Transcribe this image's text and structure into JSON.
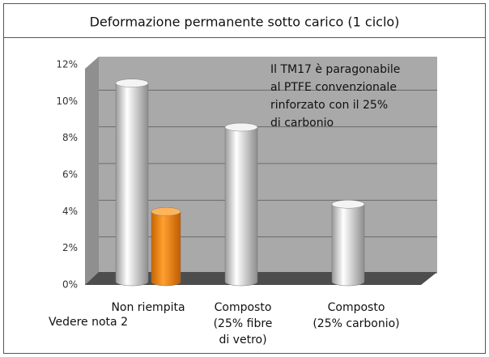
{
  "chart_data": {
    "type": "bar3d",
    "title": "Deformazione permanente sotto carico (1 ciclo)",
    "categories": [
      [
        "Non riempita"
      ],
      [
        "Composto",
        "(25% fibre",
        "di vetro)"
      ],
      [
        "Composto",
        "(25% carbonio)"
      ]
    ],
    "series": [
      {
        "color": "#e6e6e6",
        "values": [
          11,
          8.6,
          4.4
        ]
      },
      {
        "color": "#f7941d",
        "values": [
          4,
          null,
          null
        ]
      }
    ],
    "ylim": [
      0,
      12
    ],
    "yticks": [
      {
        "value": 0,
        "label": "0%"
      },
      {
        "value": 2,
        "label": "2%"
      },
      {
        "value": 4,
        "label": "4%"
      },
      {
        "value": 6,
        "label": "6%"
      },
      {
        "value": 8,
        "label": "8%"
      },
      {
        "value": 10,
        "label": "10%"
      },
      {
        "value": 12,
        "label": "12%"
      }
    ],
    "grid": true,
    "annotation": [
      "Il TM17 è paragonabile",
      "al PTFE convenzionale",
      "rinforzato con il 25%",
      "di carbonio"
    ],
    "footnote": "Vedere nota 2"
  }
}
